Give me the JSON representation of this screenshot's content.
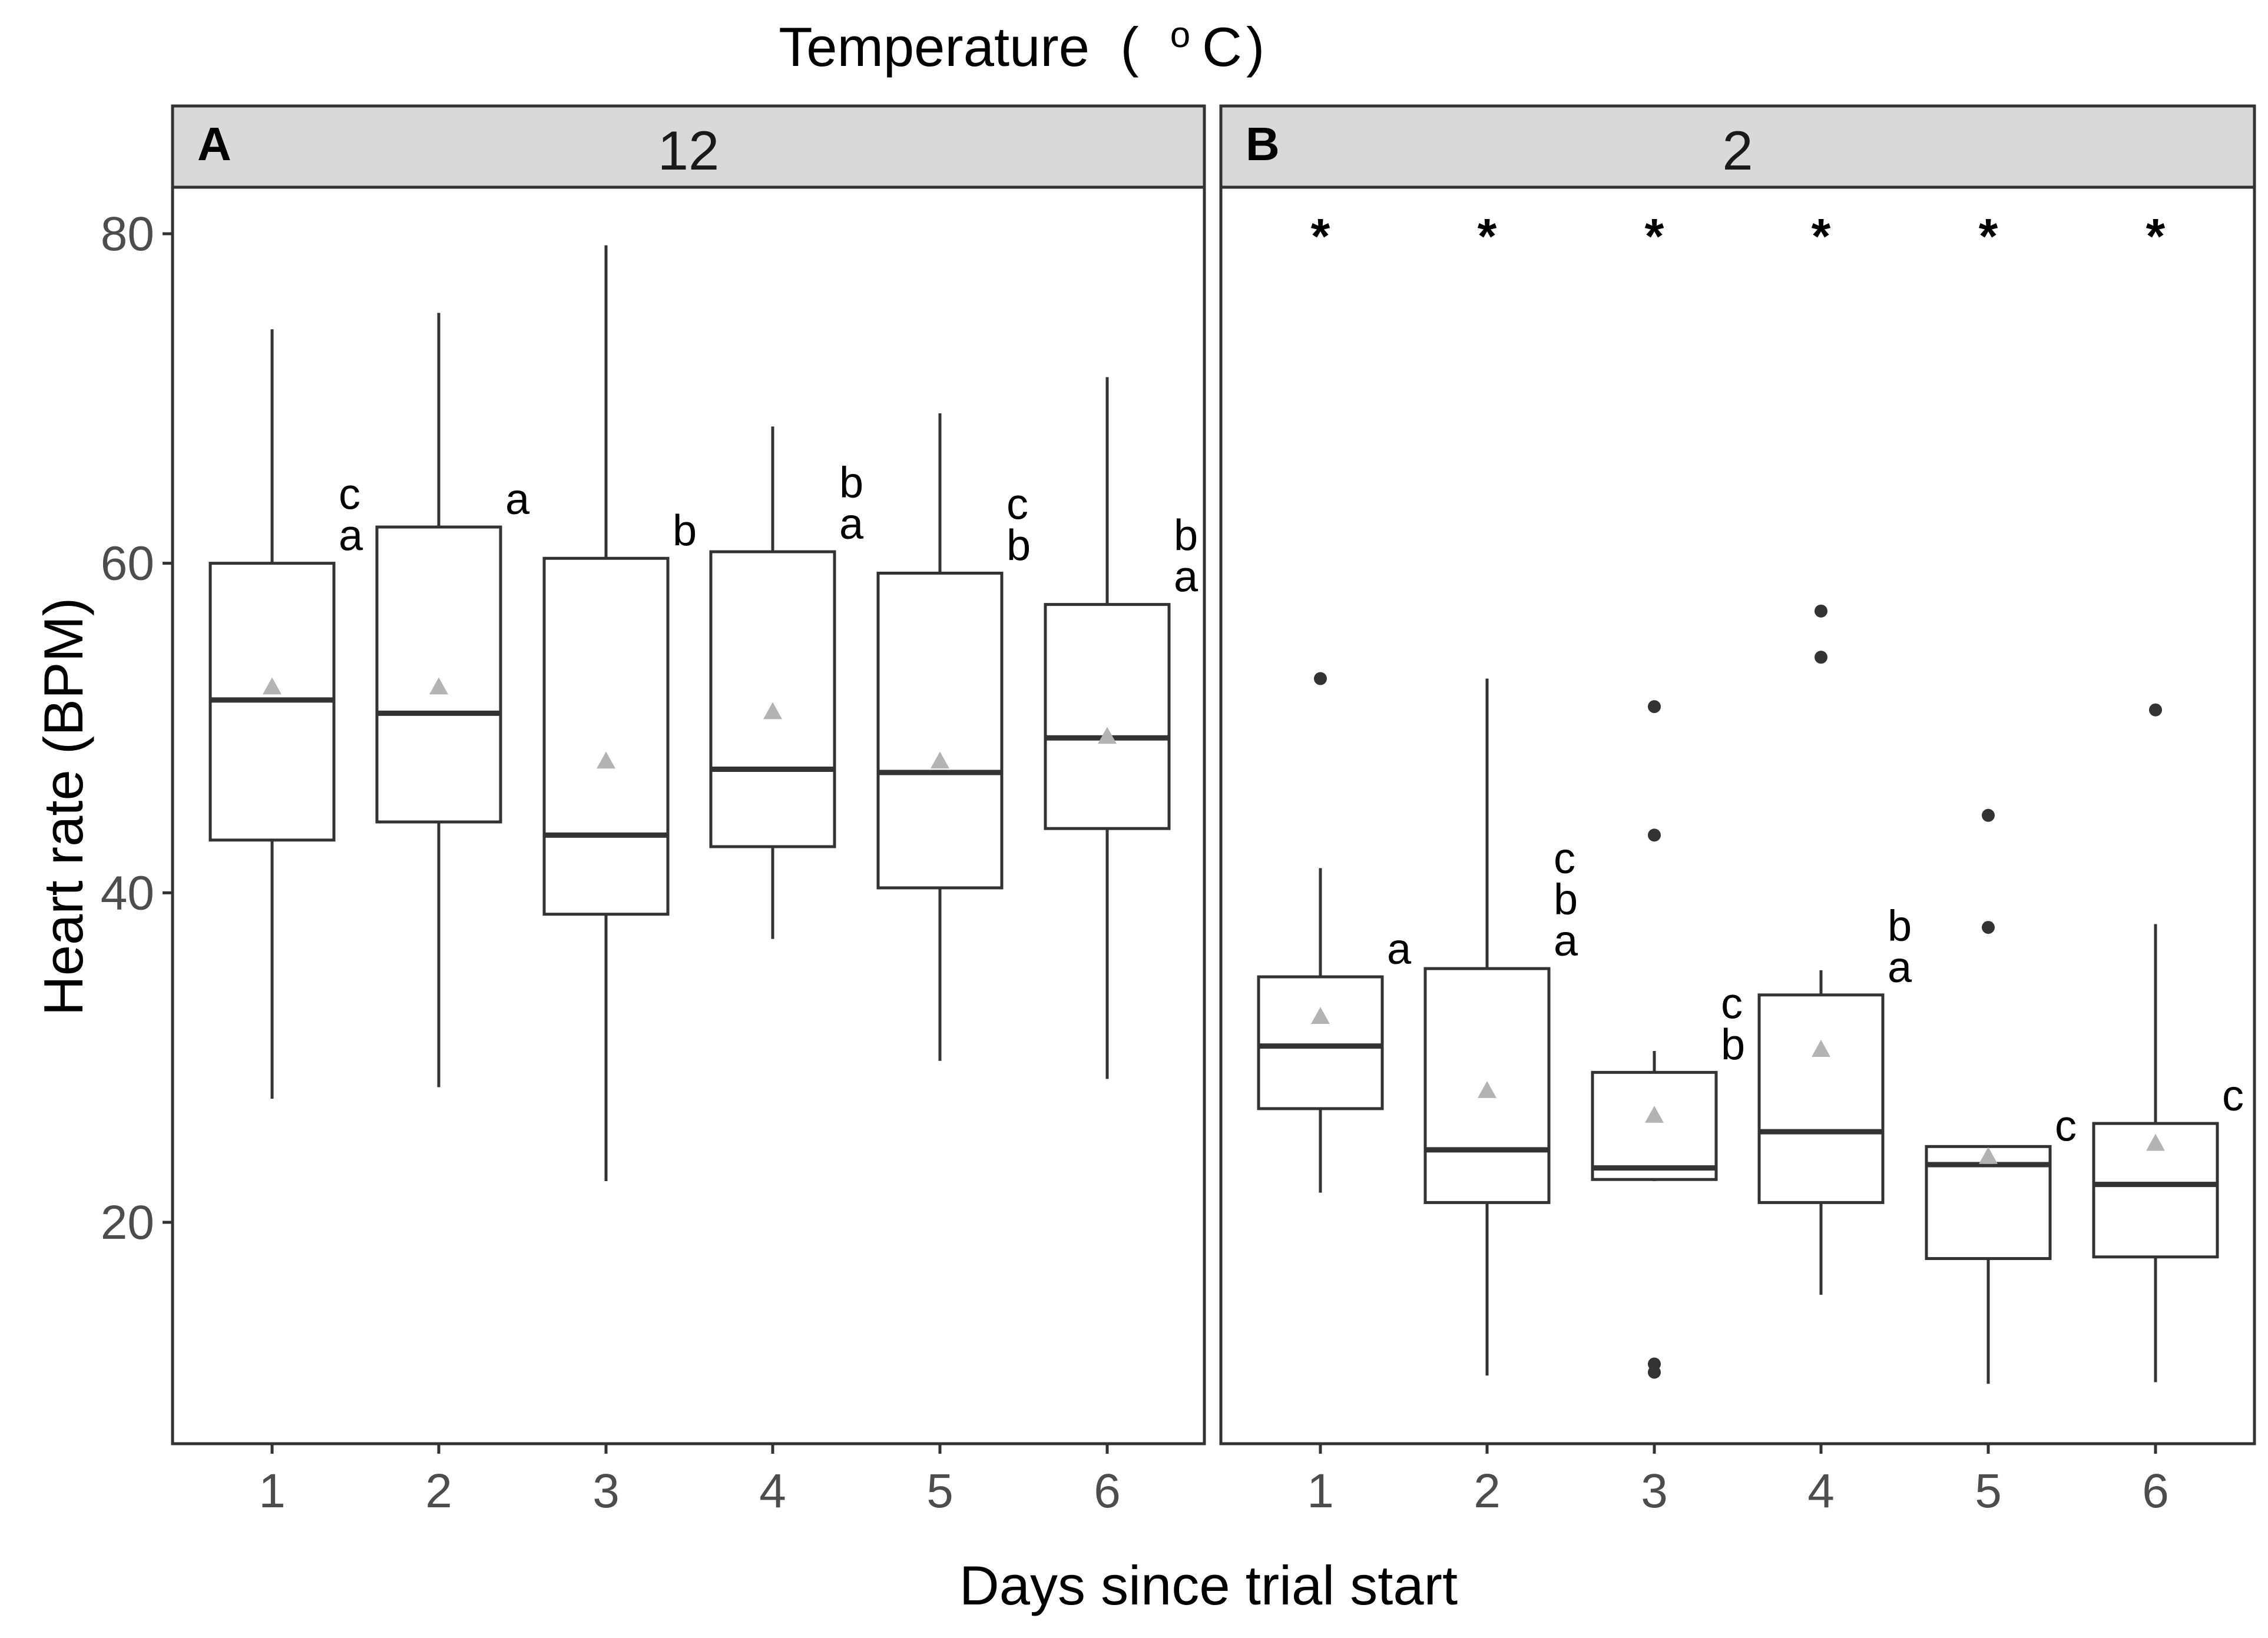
{
  "chart_data": {
    "type": "boxplot",
    "title": "Temperature",
    "title_unit_superscript": "o",
    "title_unit_letter": "C",
    "title_paren_open": "(",
    "title_paren_close": ")",
    "xlabel": "Days since trial start",
    "ylabel": "Heart rate (BPM)",
    "ylim": [
      7,
      83
    ],
    "yticks": [
      20,
      40,
      60,
      80
    ],
    "categories": [
      "1",
      "2",
      "3",
      "4",
      "5",
      "6"
    ],
    "colors": {
      "box": "#333333",
      "median": "#333333",
      "mean_marker": "#b3b3b3",
      "strip": "#d9d9d9",
      "outlier": "#333333"
    },
    "panels": [
      {
        "tag": "A",
        "temperature": "12",
        "significance": [],
        "boxes": [
          {
            "day": "1",
            "whisker_low": 27.5,
            "q1": 43.2,
            "median": 51.7,
            "q3": 60.0,
            "whisker_high": 74.2,
            "mean": 52.5,
            "outliers": [],
            "letters": [
              "c",
              "a"
            ]
          },
          {
            "day": "2",
            "whisker_low": 28.2,
            "q1": 44.3,
            "median": 50.9,
            "q3": 62.2,
            "whisker_high": 75.2,
            "mean": 52.5,
            "outliers": [],
            "letters": [
              "a"
            ]
          },
          {
            "day": "3",
            "whisker_low": 22.5,
            "q1": 38.7,
            "median": 43.5,
            "q3": 60.3,
            "whisker_high": 79.3,
            "mean": 48.0,
            "outliers": [],
            "letters": [
              "b"
            ]
          },
          {
            "day": "4",
            "whisker_low": 37.2,
            "q1": 42.8,
            "median": 47.5,
            "q3": 60.7,
            "whisker_high": 68.3,
            "mean": 51.0,
            "outliers": [],
            "letters": [
              "b",
              "a"
            ]
          },
          {
            "day": "5",
            "whisker_low": 29.8,
            "q1": 40.3,
            "median": 47.3,
            "q3": 59.4,
            "whisker_high": 69.1,
            "mean": 48.0,
            "outliers": [],
            "letters": [
              "c",
              "b"
            ]
          },
          {
            "day": "6",
            "whisker_low": 28.7,
            "q1": 43.9,
            "median": 49.4,
            "q3": 57.5,
            "whisker_high": 71.3,
            "mean": 49.5,
            "outliers": [],
            "letters": [
              "b",
              "a"
            ]
          }
        ]
      },
      {
        "tag": "B",
        "temperature": "2",
        "significance": [
          "*",
          "*",
          "*",
          "*",
          "*",
          "*"
        ],
        "boxes": [
          {
            "day": "1",
            "whisker_low": 21.8,
            "q1": 26.9,
            "median": 30.7,
            "q3": 34.9,
            "whisker_high": 41.5,
            "mean": 32.5,
            "outliers": [
              53.0
            ],
            "letters": [
              "a"
            ]
          },
          {
            "day": "2",
            "whisker_low": 10.7,
            "q1": 21.2,
            "median": 24.4,
            "q3": 35.4,
            "whisker_high": 53.0,
            "mean": 28.0,
            "outliers": [],
            "letters": [
              "c",
              "b",
              "a"
            ]
          },
          {
            "day": "3",
            "whisker_low": 22.5,
            "q1": 22.6,
            "median": 23.3,
            "q3": 29.1,
            "whisker_high": 30.4,
            "mean": 26.5,
            "outliers": [
              51.3,
              43.5,
              11.4,
              10.9
            ],
            "letters": [
              "c",
              "b"
            ]
          },
          {
            "day": "4",
            "whisker_low": 15.6,
            "q1": 21.2,
            "median": 25.5,
            "q3": 33.8,
            "whisker_high": 35.3,
            "mean": 30.5,
            "outliers": [
              57.1,
              54.3
            ],
            "letters": [
              "b",
              "a"
            ]
          },
          {
            "day": "5",
            "whisker_low": 10.2,
            "q1": 17.8,
            "median": 23.5,
            "q3": 24.6,
            "whisker_high": 24.6,
            "mean": 24.0,
            "outliers": [
              44.7,
              37.9
            ],
            "letters": [
              "c"
            ]
          },
          {
            "day": "6",
            "whisker_low": 10.3,
            "q1": 17.9,
            "median": 22.3,
            "q3": 26.0,
            "whisker_high": 38.1,
            "mean": 24.8,
            "outliers": [
              51.1
            ],
            "letters": [
              "c"
            ]
          }
        ]
      }
    ]
  }
}
